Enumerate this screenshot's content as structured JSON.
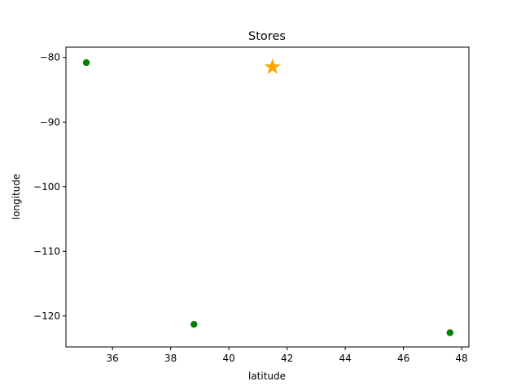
{
  "chart_data": {
    "type": "scatter",
    "title": "Stores",
    "xlabel": "latitude",
    "ylabel": "longitude",
    "xlim": [
      34.4,
      48.25
    ],
    "ylim": [
      -124.8,
      -78.4
    ],
    "grid": false,
    "xticks": [
      36,
      38,
      40,
      42,
      44,
      46,
      48
    ],
    "yticks": [
      -80,
      -90,
      -100,
      -110,
      -120
    ],
    "xtick_labels": [
      "36",
      "38",
      "40",
      "42",
      "44",
      "46",
      "48"
    ],
    "ytick_labels": [
      "−80",
      "−90",
      "−100",
      "−110",
      "−120"
    ],
    "series": [
      {
        "marker": "circle",
        "color": "#008000",
        "points": [
          {
            "x": 35.1,
            "y": -80.8
          },
          {
            "x": 38.8,
            "y": -121.3
          },
          {
            "x": 47.6,
            "y": -122.6
          }
        ]
      },
      {
        "marker": "star",
        "color": "#FFA500",
        "points": [
          {
            "x": 41.5,
            "y": -81.5
          }
        ]
      }
    ]
  }
}
